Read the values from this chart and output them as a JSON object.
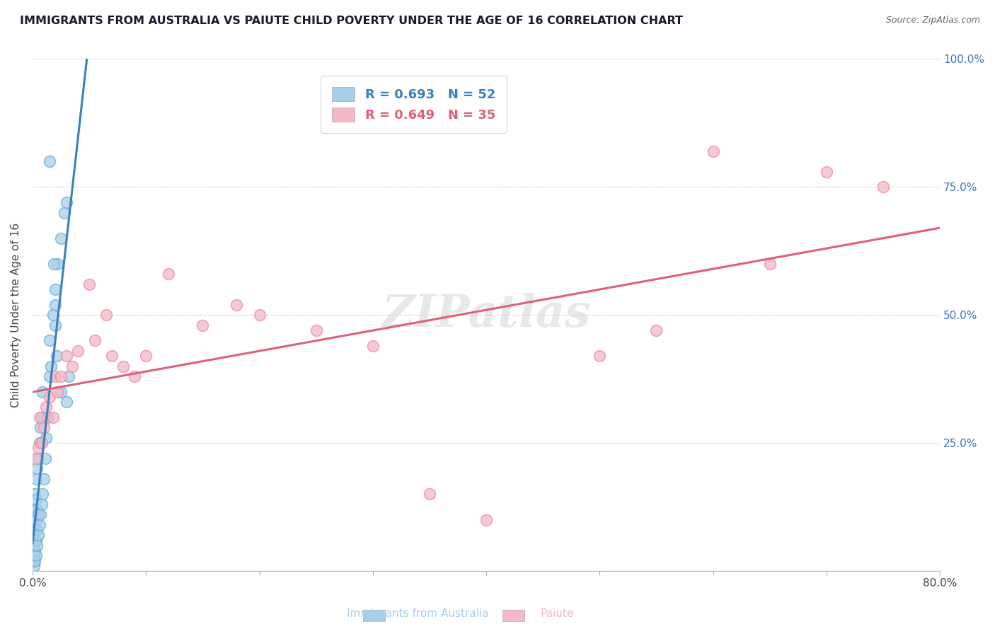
{
  "title": "IMMIGRANTS FROM AUSTRALIA VS PAIUTE CHILD POVERTY UNDER THE AGE OF 16 CORRELATION CHART",
  "source": "Source: ZipAtlas.com",
  "ylabel": "Child Poverty Under the Age of 16",
  "legend_labels": [
    "Immigrants from Australia",
    "Paiute"
  ],
  "r_blue": 0.693,
  "n_blue": 52,
  "r_pink": 0.649,
  "n_pink": 35,
  "blue_color": "#a8cfe8",
  "pink_color": "#f5b8c8",
  "blue_line_color": "#3a7fc1",
  "pink_line_color": "#e0607a",
  "blue_edge_color": "#6aaed6",
  "pink_edge_color": "#e8909f",
  "xlim": [
    0,
    0.8
  ],
  "ylim": [
    0,
    1.0
  ],
  "xticks": [
    0.0,
    0.1,
    0.2,
    0.3,
    0.4,
    0.5,
    0.6,
    0.7,
    0.8
  ],
  "xtick_labels_show": [
    "0.0%",
    "",
    "",
    "",
    "",
    "",
    "",
    "",
    "80.0%"
  ],
  "yticks_right": [
    0.25,
    0.5,
    0.75,
    1.0
  ],
  "ytick_right_labels": [
    "25.0%",
    "50.0%",
    "75.0%",
    "100.0%"
  ],
  "background_color": "#ffffff",
  "grid_color": "#d8d8d8",
  "watermark": "ZIPatlas",
  "title_fontsize": 11.5,
  "axis_fontsize": 11,
  "blue_scatter_x": [
    0.001,
    0.001,
    0.001,
    0.001,
    0.001,
    0.002,
    0.002,
    0.002,
    0.002,
    0.002,
    0.002,
    0.003,
    0.003,
    0.003,
    0.003,
    0.003,
    0.004,
    0.004,
    0.004,
    0.004,
    0.005,
    0.005,
    0.005,
    0.006,
    0.006,
    0.007,
    0.007,
    0.008,
    0.008,
    0.009,
    0.009,
    0.01,
    0.011,
    0.012,
    0.013,
    0.015,
    0.015,
    0.016,
    0.018,
    0.02,
    0.022,
    0.025,
    0.028,
    0.03,
    0.032,
    0.03,
    0.025,
    0.02,
    0.02,
    0.021,
    0.019,
    0.015
  ],
  "blue_scatter_y": [
    0.01,
    0.02,
    0.03,
    0.05,
    0.08,
    0.02,
    0.04,
    0.06,
    0.09,
    0.12,
    0.15,
    0.03,
    0.06,
    0.1,
    0.14,
    0.18,
    0.05,
    0.08,
    0.12,
    0.2,
    0.07,
    0.11,
    0.22,
    0.09,
    0.25,
    0.11,
    0.28,
    0.13,
    0.3,
    0.15,
    0.35,
    0.18,
    0.22,
    0.26,
    0.3,
    0.38,
    0.45,
    0.4,
    0.5,
    0.55,
    0.6,
    0.65,
    0.7,
    0.72,
    0.38,
    0.33,
    0.35,
    0.48,
    0.52,
    0.42,
    0.6,
    0.8
  ],
  "pink_scatter_x": [
    0.003,
    0.005,
    0.006,
    0.008,
    0.01,
    0.012,
    0.015,
    0.018,
    0.02,
    0.022,
    0.025,
    0.03,
    0.035,
    0.04,
    0.05,
    0.055,
    0.065,
    0.07,
    0.08,
    0.09,
    0.1,
    0.12,
    0.15,
    0.18,
    0.2,
    0.25,
    0.3,
    0.35,
    0.4,
    0.5,
    0.55,
    0.6,
    0.65,
    0.7,
    0.75
  ],
  "pink_scatter_y": [
    0.22,
    0.24,
    0.3,
    0.25,
    0.28,
    0.32,
    0.34,
    0.3,
    0.38,
    0.35,
    0.38,
    0.42,
    0.4,
    0.43,
    0.56,
    0.45,
    0.5,
    0.42,
    0.4,
    0.38,
    0.42,
    0.58,
    0.48,
    0.52,
    0.5,
    0.47,
    0.44,
    0.15,
    0.1,
    0.42,
    0.47,
    0.82,
    0.6,
    0.78,
    0.75
  ]
}
